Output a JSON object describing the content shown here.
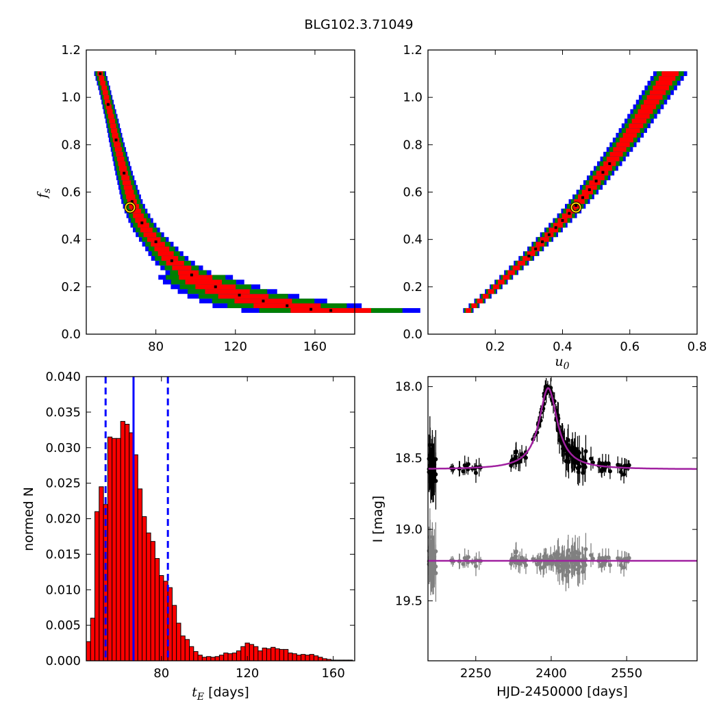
{
  "figure": {
    "title": "BLG102.3.71049"
  },
  "chart_data": [
    {
      "id": "fs_vs_tE",
      "type": "heatmap",
      "xlabel": "",
      "ylabel": "f_s",
      "xlim": [
        45,
        180
      ],
      "ylim": [
        0.0,
        1.2
      ],
      "xticks": [
        80,
        120,
        160
      ],
      "yticks": [
        0.0,
        0.2,
        0.4,
        0.6,
        0.8,
        1.0,
        1.2
      ],
      "colors": {
        "outer": "#0000ff",
        "middle": "#008000",
        "inner": "#ff0000",
        "samples": "#000000",
        "best": "#ffd700"
      },
      "ridge_tE": [
        52,
        54,
        56,
        58,
        60,
        62,
        64,
        66,
        68,
        70,
        73,
        76,
        80,
        84,
        88,
        93,
        98,
        104,
        110,
        116,
        122,
        128,
        134,
        140,
        146,
        152,
        158,
        164,
        168
      ],
      "ridge_fs": [
        1.1,
        1.04,
        0.97,
        0.9,
        0.82,
        0.75,
        0.68,
        0.62,
        0.56,
        0.52,
        0.47,
        0.43,
        0.39,
        0.35,
        0.31,
        0.28,
        0.25,
        0.22,
        0.2,
        0.18,
        0.165,
        0.15,
        0.14,
        0.13,
        0.12,
        0.11,
        0.105,
        0.1,
        0.1
      ],
      "best_fit": {
        "tE": 67,
        "fs": 0.535
      }
    },
    {
      "id": "fs_vs_u0",
      "type": "heatmap",
      "xlabel": "u_0",
      "ylabel": "",
      "xlim": [
        0.0,
        0.8
      ],
      "ylim": [
        0.0,
        1.2
      ],
      "xticks": [
        0.2,
        0.4,
        0.6,
        0.8
      ],
      "yticks": [
        0.0,
        0.2,
        0.4,
        0.6,
        0.8,
        1.0,
        1.2
      ],
      "ridge_u0": [
        0.12,
        0.18,
        0.24,
        0.3,
        0.36,
        0.42,
        0.48,
        0.54,
        0.6,
        0.66,
        0.72
      ],
      "ridge_fs": [
        0.1,
        0.17,
        0.25,
        0.33,
        0.42,
        0.51,
        0.61,
        0.72,
        0.84,
        0.97,
        1.1
      ],
      "best_fit": {
        "u0": 0.44,
        "fs": 0.535
      }
    },
    {
      "id": "tE_histogram",
      "type": "bar",
      "xlabel": "t_E [days]",
      "ylabel": "normed N",
      "xlim": [
        45,
        170
      ],
      "ylim": [
        0.0,
        0.04
      ],
      "xticks": [
        80,
        120,
        160
      ],
      "yticks": [
        0.0,
        0.005,
        0.01,
        0.015,
        0.02,
        0.025,
        0.03,
        0.035,
        0.04
      ],
      "bin_width": 2,
      "bin_start": 45,
      "values": [
        0.0027,
        0.006,
        0.021,
        0.0245,
        0.022,
        0.0315,
        0.0313,
        0.0313,
        0.0337,
        0.0333,
        0.0321,
        0.029,
        0.0242,
        0.0203,
        0.018,
        0.0168,
        0.0144,
        0.012,
        0.0112,
        0.0103,
        0.0078,
        0.0053,
        0.0035,
        0.003,
        0.002,
        0.0013,
        0.0008,
        0.0005,
        0.0006,
        0.0005,
        0.0006,
        0.0008,
        0.0011,
        0.001,
        0.0011,
        0.0014,
        0.002,
        0.0025,
        0.0023,
        0.002,
        0.0014,
        0.0018,
        0.0017,
        0.0019,
        0.0017,
        0.0016,
        0.0016,
        0.0011,
        0.001,
        0.0008,
        0.0009,
        0.0008,
        0.0009,
        0.0007,
        0.0005,
        0.0003,
        0.0002,
        0.0001,
        0.0001,
        0.0001,
        0.0001,
        0.0001
      ],
      "bar_color": "#ff0000",
      "median": 67,
      "interval": [
        54,
        83
      ],
      "line_color": "#0000ff"
    },
    {
      "id": "light_curve",
      "type": "scatter",
      "xlabel": "HJD-2450000 [days]",
      "ylabel": "I [mag]",
      "xlim": [
        2155,
        2690
      ],
      "ylim": [
        19.92,
        17.93
      ],
      "xticks": [
        2250,
        2400,
        2550
      ],
      "ytick_values": [
        18.0,
        18.5,
        19.0,
        19.5
      ],
      "ytick_labels": [
        "18.0",
        "18.5",
        "19.0",
        "19.5"
      ],
      "model_color": "#a020a0",
      "data_color": "#000000",
      "residual_color": "#808080",
      "model": {
        "t0": 2394,
        "baseline": 18.58,
        "peak": 18.01,
        "tau": 22
      },
      "residual_offset": 19.22
    }
  ]
}
